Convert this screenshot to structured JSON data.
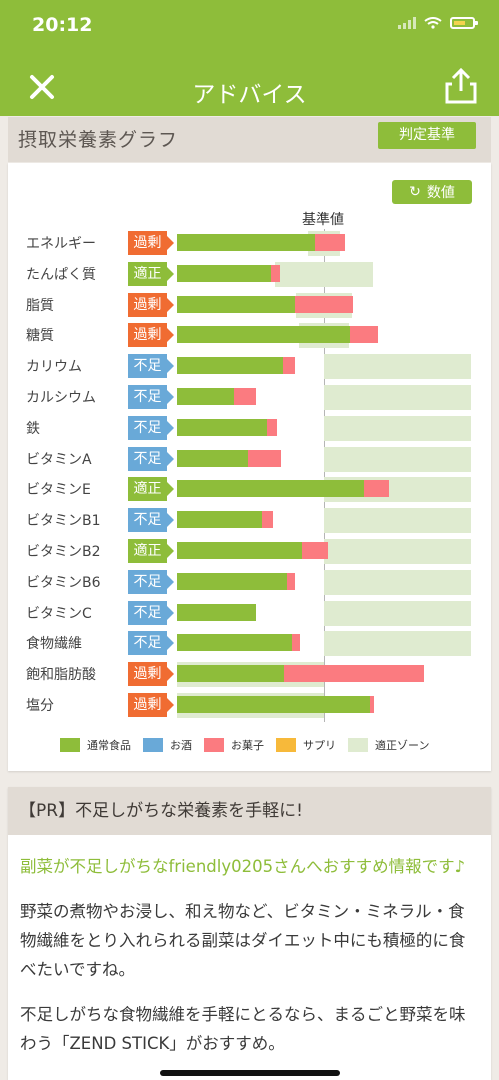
{
  "status": {
    "time": "20:12"
  },
  "nav": {
    "title": "アドバイス",
    "close_icon": "close-icon",
    "share_icon": "share-icon"
  },
  "chart_section": {
    "title": "摂取栄養素グラフ",
    "criteria_button": "判定基準",
    "numbers_button": "数値",
    "baseline_label": "基準値"
  },
  "chart_data": {
    "type": "bar",
    "categories": [
      "エネルギー",
      "たんぱく質",
      "脂質",
      "糖質",
      "カリウム",
      "カルシウム",
      "鉄",
      "ビタミンA",
      "ビタミンE",
      "ビタミンB1",
      "ビタミンB2",
      "ビタミンB6",
      "ビタミンC",
      "食物繊維",
      "飽和脂肪酸",
      "塩分"
    ],
    "statuses": [
      "過剰",
      "適正",
      "過剰",
      "過剰",
      "不足",
      "不足",
      "不足",
      "不足",
      "適正",
      "不足",
      "適正",
      "不足",
      "不足",
      "不足",
      "過剰",
      "過剰"
    ],
    "series": [
      {
        "name": "通常食品",
        "values": [
          94,
          64,
          80,
          118,
          72,
          39,
          61,
          48,
          127,
          58,
          85,
          75,
          54,
          78,
          73,
          131
        ]
      },
      {
        "name": "お酒",
        "values": [
          0,
          0,
          0,
          0,
          0,
          0,
          0,
          0,
          0,
          0,
          0,
          0,
          0,
          0,
          0,
          0
        ]
      },
      {
        "name": "お菓子",
        "values": [
          20,
          6,
          40,
          19,
          8,
          15,
          7,
          23,
          17,
          7,
          18,
          5,
          0,
          6,
          95,
          3
        ]
      },
      {
        "name": "サプリ",
        "values": [
          0,
          0,
          0,
          0,
          0,
          0,
          0,
          0,
          0,
          0,
          0,
          0,
          0,
          0,
          0,
          0
        ]
      }
    ],
    "appropriate_zone": [
      [
        89,
        111
      ],
      [
        67,
        133
      ],
      [
        81,
        119
      ],
      [
        83,
        117
      ],
      [
        100,
        200
      ],
      [
        100,
        200
      ],
      [
        100,
        200
      ],
      [
        100,
        200
      ],
      [
        100,
        200
      ],
      [
        100,
        200
      ],
      [
        100,
        200
      ],
      [
        100,
        200
      ],
      [
        100,
        200
      ],
      [
        100,
        200
      ],
      [
        0,
        100
      ],
      [
        0,
        100
      ]
    ],
    "baseline": 100,
    "legend": [
      "通常食品",
      "お酒",
      "お菓子",
      "サプリ",
      "適正ゾーン"
    ],
    "colors": {
      "通常食品": "#8ebd3a",
      "お酒": "#69a9d8",
      "お菓子": "#fb7b80",
      "サプリ": "#f7b93a",
      "適正ゾーン": "#dfebd0"
    },
    "status_colors": {
      "過剰": "#f06c32",
      "適正": "#8ebd3a",
      "不足": "#69a9d8"
    },
    "grid": false,
    "legend_position": "bottom"
  },
  "pr": {
    "title": "【PR】不足しがちな栄養素を手軽に!",
    "highlight": "副菜が不足しがちなfriendly0205さんへおすすめ情報です♪",
    "paragraph1": "野菜の煮物やお浸し、和え物など、ビタミン・ミネラル・食物繊維をとり入れられる副菜はダイエット中にも積極的に食べたいですね。",
    "paragraph2": "不足しがちな食物繊維を手軽にとるなら、まるごと野菜を味わう「ZEND STICK」がおすすめ。"
  }
}
